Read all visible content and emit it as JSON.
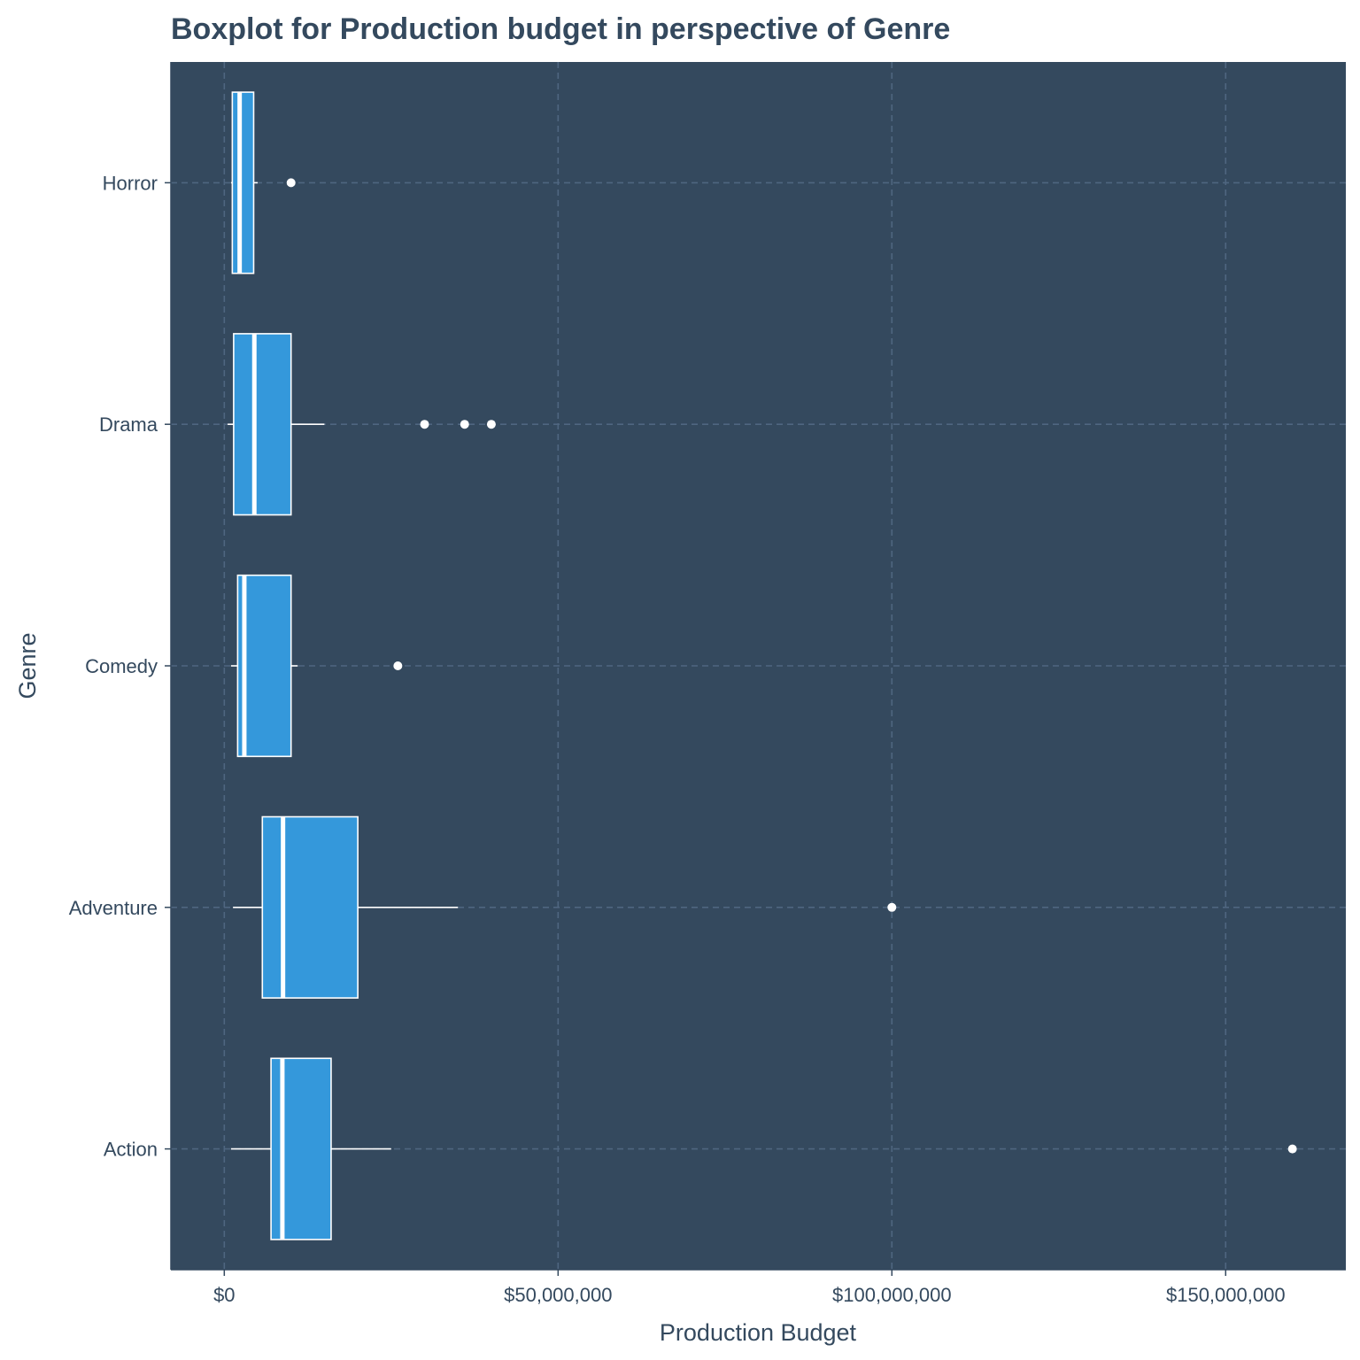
{
  "colors": {
    "panel": "#34495e",
    "box_fill": "#3498db",
    "box_stroke": "#ffffff",
    "grid": "#4f6680",
    "text": "#34495e"
  },
  "chart_data": {
    "type": "boxplot",
    "orientation": "horizontal",
    "title": "Boxplot for Production budget in perspective of Genre",
    "xlabel": "Production Budget",
    "ylabel": "Genre",
    "xlim": [
      -8000000,
      168000000
    ],
    "x_ticks": [
      0,
      50000000,
      100000000,
      150000000
    ],
    "x_tick_labels": [
      "$0",
      "$50,000,000",
      "$100,000,000",
      "$150,000,000"
    ],
    "grid": true,
    "categories": [
      "Horror",
      "Drama",
      "Comedy",
      "Adventure",
      "Action"
    ],
    "boxes": [
      {
        "genre": "Horror",
        "whisker_low": 1000000,
        "q1": 1200000,
        "median": 2300000,
        "q3": 4400000,
        "whisker_high": 5000000,
        "outliers": [
          10000000
        ]
      },
      {
        "genre": "Drama",
        "whisker_low": 500000,
        "q1": 1400000,
        "median": 4500000,
        "q3": 10000000,
        "whisker_high": 15000000,
        "outliers": [
          30000000,
          36000000,
          40000000
        ]
      },
      {
        "genre": "Comedy",
        "whisker_low": 1000000,
        "q1": 2000000,
        "median": 3000000,
        "q3": 10000000,
        "whisker_high": 11000000,
        "outliers": [
          26000000
        ]
      },
      {
        "genre": "Adventure",
        "whisker_low": 1300000,
        "q1": 5700000,
        "median": 8800000,
        "q3": 20000000,
        "whisker_high": 35000000,
        "outliers": [
          100000000
        ]
      },
      {
        "genre": "Action",
        "whisker_low": 1000000,
        "q1": 7000000,
        "median": 8700000,
        "q3": 16000000,
        "whisker_high": 25000000,
        "outliers": [
          160000000
        ]
      }
    ]
  }
}
